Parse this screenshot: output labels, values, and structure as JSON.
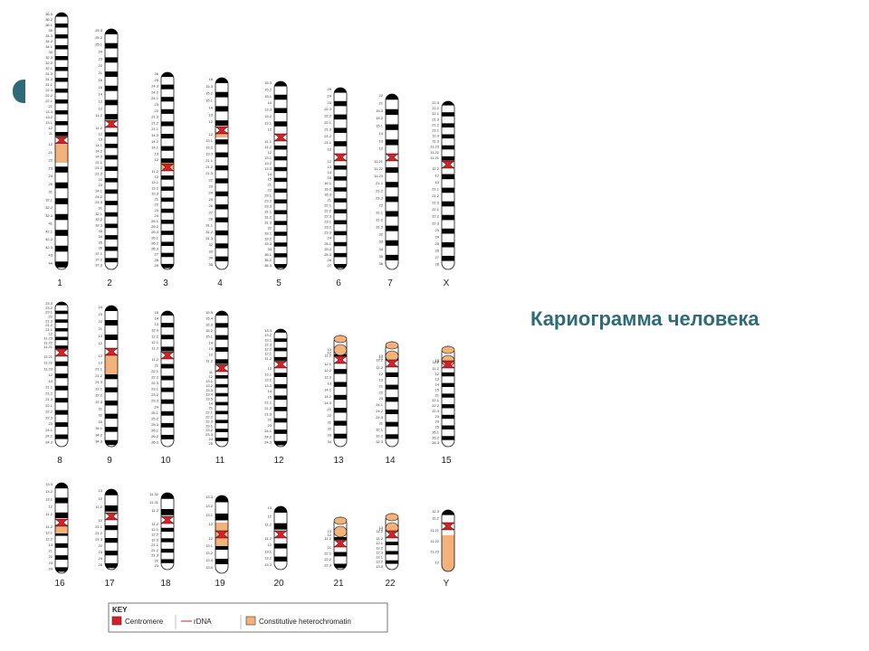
{
  "title": "Кариограмма человека",
  "key": {
    "heading": "KEY",
    "items": [
      {
        "label": "Centromere",
        "color": "#d81f26",
        "kind": "box"
      },
      {
        "label": "rDNA",
        "color": "#d81f26",
        "kind": "line"
      },
      {
        "label": "Constitutive heterochromatin",
        "color": "#f2b27a",
        "kind": "box"
      }
    ]
  },
  "colors": {
    "band": "#000000",
    "centromere": "#d81f26",
    "heterochromatin": "#f2b27a",
    "accent": "#2e6b78"
  },
  "rows": [
    {
      "chromosomes": [
        {
          "label": "1",
          "p_bands": [
            "36.3",
            "36.2",
            "36.1",
            "35",
            "34.3",
            "34.2",
            "34.1",
            "33",
            "32.3",
            "32.2",
            "32.1",
            "31.3",
            "31.2",
            "31.1",
            "22.3",
            "22.2",
            "22.1",
            "21",
            "13.3",
            "13.2",
            "13.1",
            "12",
            "11"
          ],
          "q_bands": [
            "12",
            "21",
            "22",
            "23",
            "24",
            "25",
            "31",
            "32.1",
            "32.2",
            "32.3",
            "41",
            "42.1",
            "42.2",
            "42.3",
            "43",
            "44"
          ]
        },
        {
          "label": "2",
          "p_bands": [
            "25.3",
            "25.2",
            "25.1",
            "24",
            "23",
            "22",
            "21",
            "16",
            "15",
            "14",
            "13",
            "12",
            "11.2"
          ],
          "q_bands": [
            "11.2",
            "12",
            "13",
            "14.1",
            "14.2",
            "14.3",
            "21.1",
            "21.2",
            "21.3",
            "22",
            "23",
            "24.1",
            "24.2",
            "24.3",
            "31",
            "32.1",
            "32.2",
            "32.3",
            "33",
            "34",
            "35",
            "36",
            "37.1",
            "37.2",
            "37.3"
          ]
        },
        {
          "label": "3",
          "p_bands": [
            "26",
            "25",
            "24.3",
            "24.2",
            "24.1",
            "23",
            "22",
            "21.3",
            "21.2",
            "21.1",
            "14.3",
            "14.2",
            "14.1",
            "13",
            "12"
          ],
          "q_bands": [
            "11.2",
            "12",
            "13.1",
            "13.2",
            "13.3",
            "21",
            "22",
            "23",
            "24",
            "25.1",
            "25.2",
            "25.3",
            "26.1",
            "26.2",
            "26.3",
            "27",
            "28",
            "29"
          ]
        },
        {
          "label": "4",
          "p_bands": [
            "16",
            "15.3",
            "15.2",
            "15.1",
            "14",
            "13",
            "12"
          ],
          "q_bands": [
            "12",
            "13.1",
            "13.2",
            "13.3",
            "21.1",
            "21.2",
            "21.3",
            "22",
            "23",
            "24",
            "25",
            "26",
            "27",
            "28",
            "31.1",
            "31.2",
            "31.3",
            "32",
            "33",
            "34",
            "35"
          ]
        },
        {
          "label": "5",
          "p_bands": [
            "15.3",
            "15.2",
            "15.1",
            "14",
            "13.3",
            "13.2",
            "13.1",
            "12"
          ],
          "q_bands": [
            "11.1",
            "11.2",
            "12",
            "13.1",
            "13.2",
            "13.3",
            "14",
            "15",
            "21",
            "22",
            "23.1",
            "23.2",
            "23.3",
            "31.1",
            "31.2",
            "31.3",
            "32",
            "33.1",
            "33.2",
            "33.3",
            "34",
            "35.1",
            "35.2",
            "35.3"
          ]
        },
        {
          "label": "6",
          "p_bands": [
            "25",
            "24",
            "23",
            "22.3",
            "22.2",
            "22.1",
            "21.3",
            "21.2",
            "21.1",
            "12"
          ],
          "q_bands": [
            "12",
            "13",
            "14",
            "15",
            "16.1",
            "16.2",
            "16.3",
            "21",
            "22.1",
            "22.2",
            "22.3",
            "23.1",
            "23.2",
            "23.3",
            "24",
            "25.1",
            "25.2",
            "25.3",
            "26",
            "27"
          ]
        },
        {
          "label": "7",
          "p_bands": [
            "22",
            "21",
            "15.3",
            "15.2",
            "15.1",
            "14",
            "13",
            "12"
          ],
          "q_bands": [
            "11.21",
            "11.22",
            "11.23",
            "21.1",
            "21.2",
            "21.3",
            "22",
            "31.1",
            "31.2",
            "31.3",
            "32",
            "33",
            "34",
            "35",
            "36"
          ]
        },
        {
          "label": "X",
          "p_bands": [
            "22.3",
            "22.2",
            "22.1",
            "21.3",
            "21.2",
            "21.1",
            "11.4",
            "11.3",
            "11.23",
            "11.22",
            "11.21"
          ],
          "q_bands": [
            "11.2",
            "12",
            "13",
            "21.1",
            "21.2",
            "21.3",
            "22.1",
            "22.2",
            "22.3",
            "23",
            "24",
            "25",
            "26",
            "27",
            "28"
          ]
        }
      ]
    },
    {
      "chromosomes": [
        {
          "label": "8",
          "p_bands": [
            "23.3",
            "23.2",
            "23.1",
            "22",
            "21.3",
            "21.2",
            "21.1",
            "12",
            "11.23",
            "11.22",
            "11.21"
          ],
          "q_bands": [
            "11.21",
            "11.22",
            "11.23",
            "12",
            "13",
            "21.1",
            "21.2",
            "21.3",
            "22.1",
            "22.2",
            "22.3",
            "23",
            "24.1",
            "24.2",
            "24.3"
          ]
        },
        {
          "label": "9",
          "p_bands": [
            "24",
            "23",
            "22",
            "21",
            "13",
            "12"
          ],
          "q_bands": [
            "12",
            "13",
            "21.1",
            "21.2",
            "21.3",
            "22.1",
            "22.2",
            "22.3",
            "31",
            "32",
            "33",
            "34.1",
            "34.2",
            "34.3"
          ]
        },
        {
          "label": "10",
          "p_bands": [
            "15",
            "14",
            "13",
            "12.3",
            "12.2",
            "12.1",
            "11.2"
          ],
          "q_bands": [
            "11.2",
            "21",
            "22.1",
            "22.2",
            "22.3",
            "23.1",
            "23.2",
            "23.3",
            "24",
            "25.1",
            "25.2",
            "25.3",
            "26.1",
            "26.2",
            "26.3"
          ]
        },
        {
          "label": "11",
          "p_bands": [
            "15.5",
            "15.4",
            "15.3",
            "15.2",
            "15.1",
            "14",
            "13",
            "12",
            "11.2"
          ],
          "q_bands": [
            "11",
            "12",
            "13.1",
            "13.2",
            "13.3",
            "13.4",
            "13.5",
            "14",
            "21",
            "22.1",
            "22.2",
            "22.3",
            "23.1",
            "23.2",
            "23.3",
            "24",
            "25"
          ]
        },
        {
          "label": "12",
          "p_bands": [
            "13.3",
            "13.2",
            "13.1",
            "12.3",
            "12.2",
            "12.1",
            "11.2"
          ],
          "q_bands": [
            "12",
            "13.1",
            "13.2",
            "13.3",
            "14",
            "15",
            "21.1",
            "21.2",
            "21.3",
            "22",
            "23",
            "24.1",
            "24.2",
            "24.3"
          ]
        },
        {
          "label": "13",
          "p_bands": [
            "13",
            "12",
            "11.2"
          ],
          "q_bands": [
            "12.1",
            "12.2",
            "12.3",
            "13",
            "14.1",
            "14.2",
            "14.3",
            "21",
            "22",
            "31",
            "32",
            "33",
            "34"
          ]
        },
        {
          "label": "14",
          "p_bands": [
            "13",
            "12",
            "11.2"
          ],
          "q_bands": [
            "11.2",
            "12",
            "13",
            "21",
            "22",
            "23",
            "24.1",
            "24.2",
            "24.3",
            "31",
            "32.1",
            "32.2",
            "32.3"
          ]
        },
        {
          "label": "15",
          "p_bands": [
            "13",
            "12",
            "11.2"
          ],
          "q_bands": [
            "11.2",
            "12",
            "13",
            "14",
            "15",
            "21",
            "22.1",
            "22.2",
            "22.3",
            "23",
            "24",
            "25",
            "26.1",
            "26.2",
            "26.3"
          ]
        }
      ]
    },
    {
      "chromosomes": [
        {
          "label": "16",
          "p_bands": [
            "13.3",
            "13.2",
            "13.1",
            "12",
            "11.2"
          ],
          "q_bands": [
            "11.2",
            "12.1",
            "12.2",
            "13",
            "21",
            "22",
            "23",
            "24"
          ]
        },
        {
          "label": "17",
          "p_bands": [
            "13",
            "12",
            "11.2"
          ],
          "q_bands": [
            "12",
            "21.1",
            "21.2",
            "21.3",
            "22",
            "23",
            "24",
            "25"
          ]
        },
        {
          "label": "18",
          "p_bands": [
            "11.32",
            "11.31",
            "11.2"
          ],
          "q_bands": [
            "11.2",
            "12.1",
            "12.2",
            "12.3",
            "21.1",
            "21.2",
            "21.3",
            "22",
            "23"
          ]
        },
        {
          "label": "19",
          "p_bands": [
            "13.3",
            "13.2",
            "13.1",
            "12"
          ],
          "q_bands": [
            "12",
            "13.1",
            "13.2",
            "13.3",
            "13.4"
          ]
        },
        {
          "label": "20",
          "p_bands": [
            "13",
            "12",
            "11.2"
          ],
          "q_bands": [
            "11.2",
            "12",
            "13.1",
            "13.2",
            "13.3"
          ]
        },
        {
          "label": "21",
          "p_bands": [
            "13",
            "12",
            "11.2"
          ],
          "q_bands": [
            "21",
            "22.1",
            "22.2",
            "22.3"
          ]
        },
        {
          "label": "22",
          "p_bands": [
            "13",
            "12",
            "11.2"
          ],
          "q_bands": [
            "11.2",
            "12.1",
            "12.2",
            "12.3",
            "13.1",
            "13.2",
            "13.3"
          ]
        },
        {
          "label": "Y",
          "p_bands": [
            "11.3",
            "11.2"
          ],
          "q_bands": [
            "11.21",
            "11.22",
            "11.23",
            "12"
          ]
        }
      ]
    }
  ]
}
